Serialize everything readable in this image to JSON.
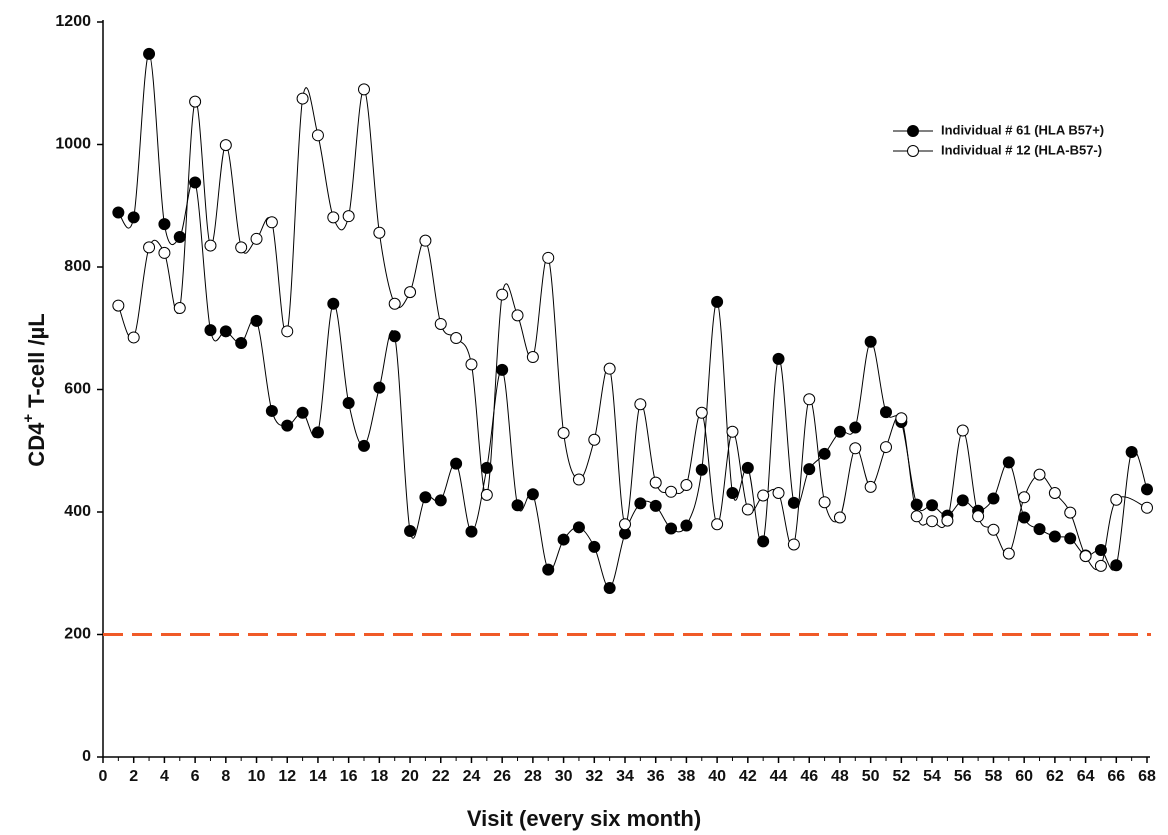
{
  "chart_data": {
    "type": "line",
    "xlabel": "Visit (every six month)",
    "ylabel": {
      "main": "CD4",
      "sup": "+",
      "rest": "T-cell /µL"
    },
    "xlim": [
      0,
      68
    ],
    "ylim": [
      0,
      1200
    ],
    "xticks": [
      0,
      2,
      4,
      6,
      8,
      10,
      12,
      14,
      16,
      18,
      20,
      22,
      24,
      26,
      28,
      30,
      32,
      34,
      36,
      38,
      40,
      42,
      44,
      46,
      48,
      50,
      52,
      54,
      56,
      58,
      60,
      62,
      64,
      66,
      68
    ],
    "yticks": [
      0,
      200,
      400,
      600,
      800,
      1000,
      1200
    ],
    "reference_line": {
      "value": 200,
      "color": "#f05a28"
    },
    "series": [
      {
        "name": "Individual # 61 (HLA B57+)",
        "color": "#000000",
        "marker_fill": "#000000",
        "x": [
          1,
          2,
          3,
          4,
          5,
          6,
          7,
          8,
          9,
          10,
          11,
          12,
          13,
          14,
          15,
          16,
          17,
          18,
          19,
          20,
          21,
          22,
          23,
          24,
          25,
          26,
          27,
          28,
          29,
          30,
          31,
          32,
          33,
          34,
          35,
          36,
          37,
          38,
          39,
          40,
          41,
          42,
          43,
          44,
          45,
          46,
          47,
          48,
          49,
          50,
          51,
          52,
          53,
          54,
          55,
          56,
          57,
          58,
          59,
          60,
          61,
          62,
          63,
          64,
          65,
          66,
          67,
          68
        ],
        "values": [
          889,
          881,
          1148,
          870,
          849,
          938,
          697,
          695,
          676,
          712,
          565,
          541,
          562,
          530,
          740,
          578,
          508,
          603,
          687,
          369,
          424,
          419,
          479,
          368,
          472,
          632,
          411,
          429,
          306,
          355,
          375,
          343,
          276,
          365,
          414,
          410,
          373,
          378,
          469,
          743,
          431,
          472,
          352,
          650,
          415,
          470,
          495,
          531,
          538,
          678,
          563,
          547,
          412,
          411,
          394,
          419,
          402,
          422,
          481,
          391,
          372,
          360,
          357,
          329,
          338,
          313,
          498,
          437
        ]
      },
      {
        "name": "Individual # 12 (HLA-B57-)",
        "color": "#000000",
        "marker_fill": "#ffffff",
        "x": [
          1,
          2,
          3,
          4,
          5,
          6,
          7,
          8,
          9,
          10,
          11,
          12,
          13,
          14,
          15,
          16,
          17,
          18,
          19,
          20,
          21,
          22,
          23,
          24,
          25,
          26,
          27,
          28,
          29,
          30,
          31,
          32,
          33,
          34,
          35,
          36,
          37,
          38,
          39,
          40,
          41,
          42,
          43,
          44,
          45,
          46,
          47,
          48,
          49,
          50,
          51,
          52,
          53,
          54,
          55,
          56,
          57,
          58,
          59,
          60,
          61,
          62,
          63,
          64,
          65,
          66,
          68
        ],
        "values": [
          737,
          685,
          832,
          823,
          733,
          1070,
          835,
          999,
          832,
          846,
          873,
          695,
          1075,
          1015,
          881,
          883,
          1090,
          856,
          740,
          759,
          843,
          707,
          684,
          641,
          428,
          755,
          721,
          653,
          815,
          529,
          453,
          518,
          634,
          380,
          576,
          448,
          433,
          444,
          562,
          380,
          531,
          404,
          427,
          431,
          347,
          584,
          416,
          391,
          504,
          441,
          506,
          553,
          393,
          385,
          386,
          533,
          393,
          371,
          332,
          424,
          461,
          431,
          399,
          328,
          312,
          420,
          407
        ]
      }
    ]
  }
}
